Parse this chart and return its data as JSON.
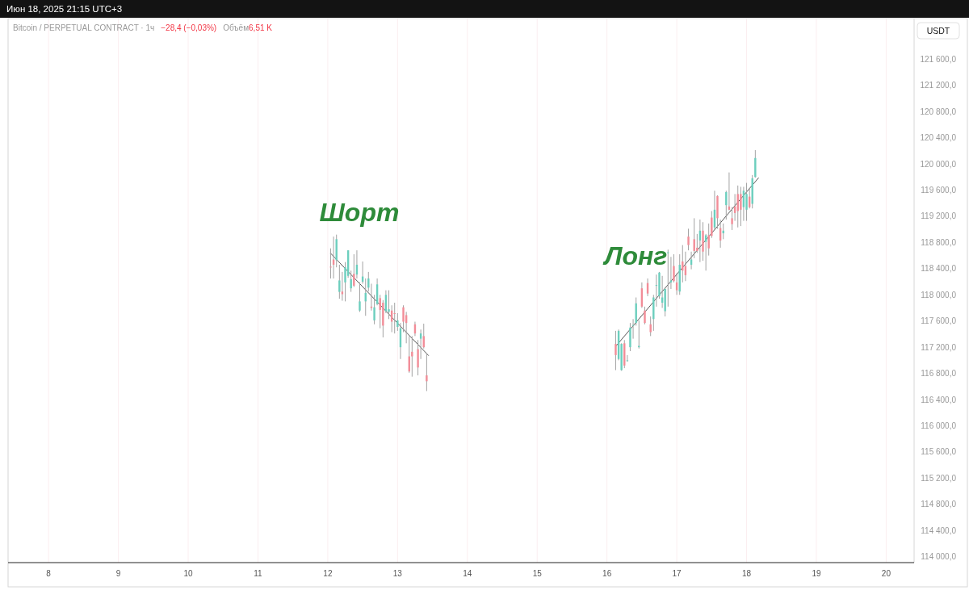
{
  "chart_data": {
    "type": "candlestick",
    "title": "Bitcoin / PERPETUAL CONTRACT · 1ч",
    "subtitle": "−28,4 (−0,03%)",
    "ylabel": "USDT",
    "annotations": [
      "Июн 18, 2025 21:15 UTC+3",
      "Объём",
      "6,51 K",
      "Шорт",
      "Лонг"
    ],
    "xlim": [
      7.42,
      20.4
    ],
    "xticks": [
      8,
      9,
      10,
      11,
      12,
      13,
      14,
      15,
      16,
      17,
      18,
      19,
      20
    ],
    "ylim": [
      113910,
      122220
    ],
    "yticks": [
      {
        "value": 114000,
        "label": "114 000,0"
      },
      {
        "value": 114400,
        "label": "114 400,0"
      },
      {
        "value": 114800,
        "label": "114 800,0"
      },
      {
        "value": 115200,
        "label": "115 200,0"
      },
      {
        "value": 115600,
        "label": "115 600,0"
      },
      {
        "value": 116000,
        "label": "116 000,0"
      },
      {
        "value": 116400,
        "label": "116 400,0"
      },
      {
        "value": 116800,
        "label": "116 800,0"
      },
      {
        "value": 117200,
        "label": "117 200,0"
      },
      {
        "value": 117600,
        "label": "117 600,0"
      },
      {
        "value": 118000,
        "label": "118 000,0"
      },
      {
        "value": 118400,
        "label": "118 400,0"
      },
      {
        "value": 118800,
        "label": "118 800,0"
      },
      {
        "value": 119200,
        "label": "119 200,0"
      },
      {
        "value": 119600,
        "label": "119 600,0"
      },
      {
        "value": 120000,
        "label": "120 000,0"
      },
      {
        "value": 120400,
        "label": "120 400,0"
      },
      {
        "value": 120800,
        "label": "120 800,0"
      },
      {
        "value": 121200,
        "label": "121 200,0"
      },
      {
        "value": 121600,
        "label": "121 600,0"
      }
    ],
    "grid": "x",
    "series": [
      {
        "type": "line",
        "x": [
          12.036,
          13.446
        ],
        "values": [
          118640,
          117070
        ],
        "color": "#555555"
      },
      {
        "type": "line",
        "x": [
          16.131,
          18.174
        ],
        "values": [
          117220,
          119790
        ],
        "color": "#555555"
      },
      {
        "colors": [
          "#f28d98",
          "#f28d98",
          "#6ccfbe",
          "#6ccfbe",
          "#f28d98",
          "#6ccfbe",
          "#6ccfbe",
          "#6ccfbe",
          "#f28d98",
          "#6ccfbe",
          "#6ccfbe",
          "#6ccfbe",
          "#6ccfbe",
          "#6ccfbe",
          "#f28d98",
          "#6ccfbe",
          "#6ccfbe",
          "#f28d98",
          "#f28d98",
          "#6ccfbe",
          "#6ccfbe",
          "#f28d98",
          "#f28d98",
          "#6ccfbe",
          "#6ccfbe",
          "#f28d98",
          "#f28d98",
          "#f28d98",
          "#f28d98",
          "#f28d98",
          "#f28d98",
          "#6ccfbe",
          "#f28d98",
          "#f28d98"
        ],
        "x": [
          12.042,
          12.083,
          12.125,
          12.167,
          12.208,
          12.25,
          12.292,
          12.333,
          12.375,
          12.417,
          12.458,
          12.5,
          12.542,
          12.583,
          12.625,
          12.667,
          12.708,
          12.75,
          12.792,
          12.833,
          12.875,
          12.917,
          12.958,
          13.0,
          13.042,
          13.083,
          13.125,
          13.167,
          13.208,
          13.25,
          13.292,
          13.333,
          13.375,
          13.417
        ],
        "ohlc": [
          [
            118430,
            118710,
            118250,
            118420
          ],
          [
            118540,
            118890,
            118250,
            118460
          ],
          [
            118530,
            118920,
            118420,
            118850
          ],
          [
            118045,
            118460,
            117940,
            118220
          ],
          [
            118050,
            118350,
            117910,
            118010
          ],
          [
            118190,
            118500,
            117900,
            118420
          ],
          [
            118290,
            118680,
            118260,
            118680
          ],
          [
            118100,
            118370,
            118045,
            118240
          ],
          [
            118320,
            118620,
            118120,
            118140
          ],
          [
            118310,
            118680,
            118250,
            118460
          ],
          [
            117760,
            118190,
            117740,
            117900
          ],
          [
            118200,
            118510,
            118170,
            118280
          ],
          [
            117900,
            118250,
            117680,
            118030
          ],
          [
            118110,
            118350,
            118050,
            118250
          ],
          [
            117820,
            118170,
            117760,
            117800
          ],
          [
            117610,
            118000,
            117550,
            117810
          ],
          [
            117860,
            118250,
            117840,
            118160
          ],
          [
            117950,
            118000,
            117490,
            117770
          ],
          [
            117880,
            117920,
            117350,
            117530
          ],
          [
            117750,
            118070,
            117720,
            118000
          ],
          [
            117740,
            118070,
            117630,
            117780
          ],
          [
            117760,
            117840,
            117430,
            117590
          ],
          [
            117720,
            117880,
            117410,
            117710
          ],
          [
            117510,
            117720,
            117450,
            117610
          ],
          [
            117200,
            117570,
            117020,
            117490
          ],
          [
            117810,
            117840,
            117430,
            117590
          ],
          [
            117690,
            117740,
            117260,
            117570
          ],
          [
            117060,
            117370,
            116810,
            116830
          ],
          [
            117130,
            117370,
            116750,
            117060
          ],
          [
            117550,
            117590,
            117370,
            117410
          ],
          [
            117170,
            117310,
            116770,
            116890
          ],
          [
            117330,
            117470,
            117020,
            117410
          ],
          [
            117370,
            117560,
            117180,
            117200
          ],
          [
            116770,
            117100,
            116530,
            116680
          ]
        ]
      },
      {
        "colors": [
          "#f28d98",
          "#6ccfbe",
          "#6ccfbe",
          "#f28d98",
          "#6ccfbe",
          "#6ccfbe",
          "#6ccfbe",
          "#6ccfbe",
          "#6ccfbe",
          "#f28d98",
          "#f28d98",
          "#f28d98",
          "#f28d98",
          "#6ccfbe",
          "#6ccfbe",
          "#6ccfbe",
          "#6ccfbe",
          "#6ccfbe",
          "#6ccfbe",
          "#6ccfbe",
          "#f28d98",
          "#f28d98",
          "#6ccfbe",
          "#f28d98",
          "#f28d98",
          "#f28d98",
          "#6ccfbe",
          "#f28d98",
          "#f28d98",
          "#6ccfbe",
          "#f28d98",
          "#6ccfbe",
          "#f28d98",
          "#f28d98",
          "#6ccfbe",
          "#f28d98",
          "#f28d98",
          "#6ccfbe",
          "#6ccfbe",
          "#f28d98",
          "#f28d98",
          "#f28d98",
          "#f28d98",
          "#f28d98",
          "#6ccfbe",
          "#6ccfbe",
          "#f28d98",
          "#6ccfbe",
          "#6ccfbe"
        ],
        "x": [
          16.125,
          16.167,
          16.208,
          16.25,
          16.292,
          16.333,
          16.375,
          16.417,
          16.458,
          16.5,
          16.542,
          16.583,
          16.625,
          16.667,
          16.708,
          16.75,
          16.792,
          16.833,
          16.875,
          16.917,
          16.958,
          17.0,
          17.042,
          17.083,
          17.125,
          17.167,
          17.208,
          17.25,
          17.292,
          17.333,
          17.375,
          17.417,
          17.458,
          17.5,
          17.542,
          17.583,
          17.625,
          17.667,
          17.708,
          17.75,
          17.792,
          17.833,
          17.875,
          17.917,
          17.958,
          18.0,
          18.042,
          18.083,
          18.125
        ],
        "ohlc": [
          [
            117250,
            117450,
            116850,
            117080
          ],
          [
            117020,
            117470,
            117000,
            117450
          ],
          [
            116850,
            117260,
            116840,
            117250
          ],
          [
            117260,
            117310,
            116880,
            116920
          ],
          [
            116990,
            117080,
            116980,
            117000
          ],
          [
            117200,
            117570,
            117140,
            117500
          ],
          [
            117530,
            117630,
            117330,
            117540
          ],
          [
            117570,
            117960,
            117530,
            117870
          ],
          [
            117200,
            117610,
            117180,
            117220
          ],
          [
            118100,
            118190,
            117800,
            117820
          ],
          [
            117760,
            117820,
            117550,
            117570
          ],
          [
            118180,
            118250,
            117980,
            118020
          ],
          [
            117550,
            117670,
            117370,
            117430
          ],
          [
            117630,
            118000,
            117450,
            117960
          ],
          [
            118140,
            118310,
            117820,
            118150
          ],
          [
            117980,
            118350,
            117940,
            118340
          ],
          [
            117880,
            118290,
            117800,
            117960
          ],
          [
            117750,
            118110,
            117670,
            118090
          ],
          [
            118640,
            118690,
            117820,
            118650
          ],
          [
            118190,
            118580,
            118090,
            118220
          ],
          [
            118440,
            118620,
            118190,
            118210
          ],
          [
            118190,
            118330,
            118000,
            118070
          ],
          [
            118050,
            118620,
            118000,
            118460
          ],
          [
            118510,
            118760,
            118190,
            118370
          ],
          [
            118440,
            118660,
            118210,
            118300
          ],
          [
            118890,
            119010,
            118680,
            118760
          ],
          [
            118460,
            118660,
            118390,
            118540
          ],
          [
            118850,
            119170,
            118560,
            118670
          ],
          [
            118720,
            118930,
            118640,
            118670
          ],
          [
            118830,
            119150,
            118500,
            118980
          ],
          [
            118980,
            119110,
            118520,
            118660
          ],
          [
            118810,
            118930,
            118370,
            118910
          ],
          [
            118910,
            119090,
            118600,
            118710
          ],
          [
            119180,
            119280,
            118870,
            118900
          ],
          [
            119030,
            119590,
            118990,
            119300
          ],
          [
            119510,
            119520,
            119010,
            119170
          ],
          [
            119020,
            119150,
            118720,
            118830
          ],
          [
            118940,
            119090,
            118850,
            118980
          ],
          [
            119370,
            119590,
            119150,
            119570
          ],
          [
            119350,
            119870,
            119290,
            119300
          ],
          [
            119170,
            119340,
            118990,
            119080
          ],
          [
            119350,
            119540,
            119130,
            119250
          ],
          [
            119540,
            119670,
            119030,
            119280
          ],
          [
            119540,
            119650,
            119050,
            119300
          ],
          [
            119340,
            119650,
            119130,
            119590
          ],
          [
            119300,
            119710,
            119130,
            119540
          ],
          [
            119500,
            119630,
            119320,
            119340
          ],
          [
            119390,
            119830,
            119320,
            119780
          ],
          [
            119800,
            120210,
            119790,
            120090
          ]
        ]
      }
    ]
  }
}
